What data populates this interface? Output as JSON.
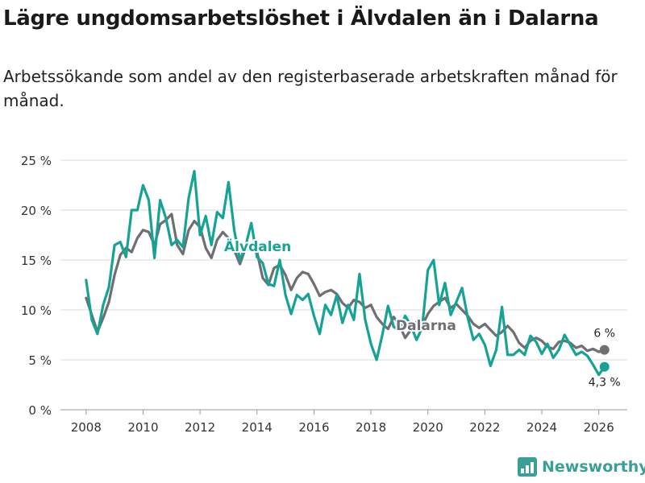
{
  "title": "Lägre ungdomsarbetslöshet i Älvdalen än i Dalarna",
  "subtitle": "Arbetssökande som andel av den registerbaserade arbetskraften månad för månad.",
  "brand": "Newsworthy",
  "colors": {
    "alvdalen": "#14a395",
    "dalarna": "#6f6e73",
    "grid": "#d9d9d9",
    "text": "#1a1a1a"
  },
  "chart_data": {
    "type": "line",
    "title": "Lägre ungdomsarbetslöshet i Älvdalen än i Dalarna",
    "xlabel": "",
    "ylabel": "",
    "xlim": [
      2007.1,
      2027.0
    ],
    "ylim": [
      0,
      25
    ],
    "x_ticks": [
      2008,
      2010,
      2012,
      2014,
      2016,
      2018,
      2020,
      2022,
      2024,
      2026
    ],
    "x_tick_labels": [
      "2008",
      "2010",
      "2012",
      "2014",
      "2016",
      "2018",
      "2020",
      "2022",
      "2024",
      "2026"
    ],
    "y_ticks": [
      0,
      5,
      10,
      15,
      20,
      25
    ],
    "y_tick_labels": [
      "0 %",
      "5 %",
      "10 %",
      "15 %",
      "20 %",
      "25 %"
    ],
    "grid": true,
    "series": [
      {
        "name": "Dalarna",
        "label": "Dalarna",
        "end_label": "6 %",
        "x": [
          2008.0,
          2008.2,
          2008.4,
          2008.6,
          2008.8,
          2009.0,
          2009.2,
          2009.4,
          2009.6,
          2009.8,
          2010.0,
          2010.2,
          2010.4,
          2010.6,
          2010.8,
          2011.0,
          2011.2,
          2011.4,
          2011.6,
          2011.8,
          2012.0,
          2012.2,
          2012.4,
          2012.6,
          2012.8,
          2013.0,
          2013.2,
          2013.4,
          2013.6,
          2013.8,
          2014.0,
          2014.2,
          2014.4,
          2014.6,
          2014.8,
          2015.0,
          2015.2,
          2015.4,
          2015.6,
          2015.8,
          2016.0,
          2016.2,
          2016.4,
          2016.6,
          2016.8,
          2017.0,
          2017.2,
          2017.4,
          2017.6,
          2017.8,
          2018.0,
          2018.2,
          2018.4,
          2018.6,
          2018.8,
          2019.0,
          2019.2,
          2019.4,
          2019.6,
          2019.8,
          2020.0,
          2020.2,
          2020.4,
          2020.6,
          2020.8,
          2021.0,
          2021.2,
          2021.4,
          2021.6,
          2021.8,
          2022.0,
          2022.2,
          2022.4,
          2022.6,
          2022.8,
          2023.0,
          2023.2,
          2023.4,
          2023.6,
          2023.8,
          2024.0,
          2024.2,
          2024.4,
          2024.6,
          2024.8,
          2025.0,
          2025.2,
          2025.4,
          2025.6,
          2025.8,
          2026.0,
          2026.2
        ],
        "values": [
          11.2,
          9.5,
          7.8,
          9.2,
          10.8,
          13.5,
          15.5,
          16.2,
          15.8,
          17.2,
          18.0,
          17.8,
          16.5,
          18.6,
          19.0,
          19.6,
          16.5,
          15.6,
          18.0,
          18.9,
          18.3,
          16.2,
          15.2,
          17.0,
          17.8,
          17.2,
          16.0,
          14.6,
          16.2,
          16.0,
          15.8,
          13.2,
          12.5,
          14.2,
          14.5,
          13.5,
          12.0,
          13.2,
          13.8,
          13.6,
          12.6,
          11.4,
          11.8,
          12.0,
          11.6,
          10.7,
          10.2,
          11.0,
          10.8,
          10.2,
          10.5,
          9.3,
          8.6,
          8.1,
          9.3,
          8.5,
          7.2,
          8.0,
          8.8,
          8.4,
          9.6,
          10.4,
          10.8,
          11.2,
          10.2,
          10.6,
          10.0,
          9.4,
          8.6,
          8.2,
          8.6,
          8.0,
          7.4,
          7.8,
          8.4,
          7.8,
          6.7,
          6.2,
          6.9,
          7.2,
          6.9,
          6.3,
          6.1,
          6.8,
          6.9,
          6.7,
          6.2,
          6.4,
          5.9,
          6.1,
          5.8,
          6.0
        ]
      },
      {
        "name": "Älvdalen",
        "label": "Älvdalen",
        "end_label": "4,3 %",
        "x": [
          2008.0,
          2008.2,
          2008.4,
          2008.6,
          2008.8,
          2009.0,
          2009.2,
          2009.4,
          2009.6,
          2009.8,
          2010.0,
          2010.2,
          2010.4,
          2010.6,
          2010.8,
          2011.0,
          2011.2,
          2011.4,
          2011.6,
          2011.8,
          2012.0,
          2012.2,
          2012.4,
          2012.6,
          2012.8,
          2013.0,
          2013.2,
          2013.4,
          2013.6,
          2013.8,
          2014.0,
          2014.2,
          2014.4,
          2014.6,
          2014.8,
          2015.0,
          2015.2,
          2015.4,
          2015.6,
          2015.8,
          2016.0,
          2016.2,
          2016.4,
          2016.6,
          2016.8,
          2017.0,
          2017.2,
          2017.4,
          2017.6,
          2017.8,
          2018.0,
          2018.2,
          2018.4,
          2018.6,
          2018.8,
          2019.0,
          2019.2,
          2019.4,
          2019.6,
          2019.8,
          2020.0,
          2020.2,
          2020.4,
          2020.6,
          2020.8,
          2021.0,
          2021.2,
          2021.4,
          2021.6,
          2021.8,
          2022.0,
          2022.2,
          2022.4,
          2022.6,
          2022.8,
          2023.0,
          2023.2,
          2023.4,
          2023.6,
          2023.8,
          2024.0,
          2024.2,
          2024.4,
          2024.6,
          2024.8,
          2025.0,
          2025.2,
          2025.4,
          2025.6,
          2025.8,
          2026.0,
          2026.2
        ],
        "values": [
          13.0,
          9.0,
          7.6,
          10.5,
          12.3,
          16.5,
          16.8,
          15.3,
          20.0,
          20.0,
          22.5,
          21.0,
          15.2,
          21.0,
          19.2,
          16.5,
          17.0,
          16.3,
          21.2,
          23.9,
          17.5,
          19.4,
          16.5,
          19.8,
          19.2,
          22.8,
          18.0,
          15.0,
          16.4,
          18.7,
          15.3,
          14.7,
          12.6,
          12.4,
          15.0,
          11.5,
          9.6,
          11.5,
          11.0,
          11.6,
          9.4,
          7.6,
          10.5,
          9.5,
          11.5,
          8.7,
          10.5,
          9.0,
          13.6,
          9.0,
          6.6,
          5.0,
          7.5,
          10.4,
          8.3,
          8.0,
          9.4,
          8.5,
          7.0,
          8.2,
          14.0,
          15.0,
          10.5,
          12.7,
          9.5,
          10.8,
          12.2,
          9.2,
          7.0,
          7.6,
          6.5,
          4.4,
          6.0,
          10.3,
          5.5,
          5.5,
          6.0,
          5.5,
          7.4,
          6.8,
          5.6,
          6.6,
          5.2,
          6.0,
          7.5,
          6.5,
          5.5,
          5.8,
          5.4,
          4.5,
          3.5,
          4.3
        ]
      }
    ]
  }
}
